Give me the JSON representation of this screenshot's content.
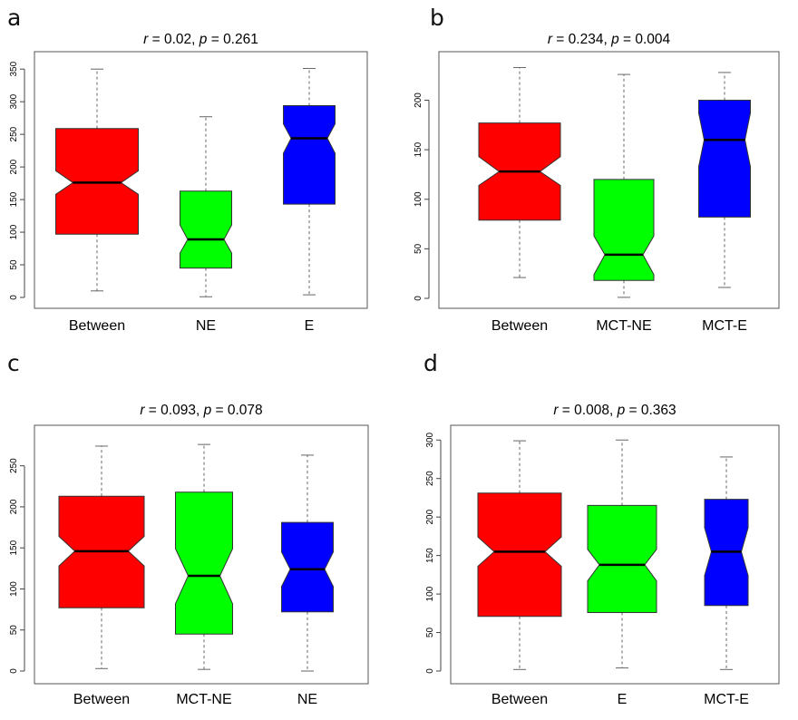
{
  "chart_data": [
    {
      "panel": "a",
      "type": "boxplot",
      "title": {
        "r_symbol": "r",
        "r_value": "0.02,",
        "p_symbol": "p",
        "p_value": "0.261"
      },
      "ylim": [
        0,
        360
      ],
      "yticks": [
        0,
        50,
        100,
        150,
        200,
        250,
        300,
        350
      ],
      "categories": [
        "Between",
        "NE",
        "E"
      ],
      "colors": [
        "#ff0000",
        "#00ff00",
        "#0000ff"
      ],
      "boxes": [
        {
          "min": 10,
          "q1": 97,
          "median": 176,
          "q3": 259,
          "max": 350,
          "notch_low": 158,
          "notch_high": 194
        },
        {
          "min": 1,
          "q1": 45,
          "median": 89,
          "q3": 163,
          "max": 277,
          "notch_low": 68,
          "notch_high": 111
        },
        {
          "min": 4,
          "q1": 143,
          "median": 244,
          "q3": 294,
          "max": 351,
          "notch_low": 221,
          "notch_high": 266
        }
      ]
    },
    {
      "panel": "b",
      "type": "boxplot",
      "title": {
        "r_symbol": "r",
        "r_value": "0.234,",
        "p_symbol": "p",
        "p_value": "0.004"
      },
      "ylim": [
        0,
        238
      ],
      "yticks": [
        0,
        50,
        100,
        150,
        200
      ],
      "categories": [
        "Between",
        "MCT-NE",
        "MCT-E"
      ],
      "colors": [
        "#ff0000",
        "#00ff00",
        "#0000ff"
      ],
      "boxes": [
        {
          "min": 21,
          "q1": 79,
          "median": 128,
          "q3": 177,
          "max": 233,
          "notch_low": 114,
          "notch_high": 143
        },
        {
          "min": 1,
          "q1": 18,
          "median": 44,
          "q3": 120,
          "max": 226,
          "notch_low": 24,
          "notch_high": 63
        },
        {
          "min": 11,
          "q1": 82,
          "median": 160,
          "q3": 200,
          "max": 228,
          "notch_low": 133,
          "notch_high": 187
        }
      ]
    },
    {
      "panel": "c",
      "type": "boxplot",
      "title": {
        "r_symbol": "r",
        "r_value": "0.093,",
        "p_symbol": "p",
        "p_value": "0.078"
      },
      "ylim": [
        0,
        285
      ],
      "yticks": [
        0,
        50,
        100,
        150,
        200,
        250
      ],
      "categories": [
        "Between",
        "MCT-NE",
        "NE"
      ],
      "colors": [
        "#ff0000",
        "#00ff00",
        "#0000ff"
      ],
      "boxes": [
        {
          "min": 3,
          "q1": 77,
          "median": 146,
          "q3": 213,
          "max": 274,
          "notch_low": 128,
          "notch_high": 164
        },
        {
          "min": 2,
          "q1": 45,
          "median": 116,
          "q3": 218,
          "max": 276,
          "notch_low": 82,
          "notch_high": 149
        },
        {
          "min": 0,
          "q1": 72,
          "median": 124,
          "q3": 181,
          "max": 263,
          "notch_low": 103,
          "notch_high": 145
        }
      ]
    },
    {
      "panel": "d",
      "type": "boxplot",
      "title": {
        "r_symbol": "r",
        "r_value": "0.008,",
        "p_symbol": "p",
        "p_value": "0.363"
      },
      "ylim": [
        0,
        305
      ],
      "yticks": [
        0,
        50,
        100,
        150,
        200,
        250,
        300
      ],
      "categories": [
        "Between",
        "E",
        "MCT-E"
      ],
      "colors": [
        "#ff0000",
        "#00ff00",
        "#0000ff"
      ],
      "boxes": [
        {
          "min": 2,
          "q1": 71,
          "median": 155,
          "q3": 231,
          "max": 299,
          "notch_low": 136,
          "notch_high": 174
        },
        {
          "min": 4,
          "q1": 76,
          "median": 138,
          "q3": 215,
          "max": 300,
          "notch_low": 117,
          "notch_high": 158
        },
        {
          "min": 2,
          "q1": 85,
          "median": 155,
          "q3": 223,
          "max": 278,
          "notch_low": 124,
          "notch_high": 186
        }
      ]
    }
  ]
}
